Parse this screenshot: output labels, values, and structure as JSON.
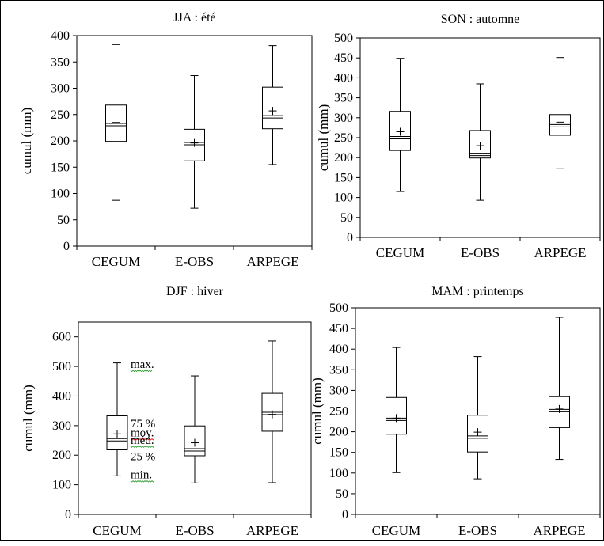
{
  "chart_data": [
    {
      "type": "box",
      "title": "JJA : été",
      "ylabel": "cumul (mm)",
      "ylim": [
        0,
        400
      ],
      "yticks": [
        0,
        50,
        100,
        150,
        200,
        250,
        300,
        350,
        400
      ],
      "categories": [
        "CEGUM",
        "E-OBS",
        "ARPEGE"
      ],
      "boxes": [
        {
          "min": 87,
          "q1": 199,
          "median": 233,
          "mean": 235,
          "q3": 268,
          "max": 383
        },
        {
          "min": 72,
          "q1": 162,
          "median": 197,
          "mean": 196,
          "q3": 222,
          "max": 324
        },
        {
          "min": 155,
          "q1": 223,
          "median": 248,
          "mean": 257,
          "q3": 302,
          "max": 381
        }
      ]
    },
    {
      "type": "box",
      "title": "SON : automne",
      "ylabel": "cumul (mm)",
      "ylim": [
        0,
        500
      ],
      "yticks": [
        0,
        50,
        100,
        150,
        200,
        250,
        300,
        350,
        400,
        450,
        500
      ],
      "categories": [
        "CEGUM",
        "E-OBS",
        "ARPEGE"
      ],
      "boxes": [
        {
          "min": 115,
          "q1": 218,
          "median": 253,
          "mean": 265,
          "q3": 316,
          "max": 449
        },
        {
          "min": 93,
          "q1": 199,
          "median": 211,
          "mean": 230,
          "q3": 268,
          "max": 385
        },
        {
          "min": 172,
          "q1": 256,
          "median": 283,
          "mean": 289,
          "q3": 308,
          "max": 451
        }
      ]
    },
    {
      "type": "box",
      "title": "DJF : hiver",
      "ylabel": "cumul (mm)",
      "ylim": [
        0,
        650
      ],
      "yticks": [
        0,
        100,
        200,
        300,
        400,
        500,
        600
      ],
      "categories": [
        "CEGUM",
        "E-OBS",
        "ARPEGE"
      ],
      "boxes": [
        {
          "min": 130,
          "q1": 218,
          "median": 256,
          "mean": 272,
          "q3": 333,
          "max": 512
        },
        {
          "min": 106,
          "q1": 198,
          "median": 222,
          "mean": 242,
          "q3": 299,
          "max": 468
        },
        {
          "min": 107,
          "q1": 281,
          "median": 345,
          "mean": 338,
          "q3": 409,
          "max": 586
        }
      ],
      "annotations": {
        "max": "max.",
        "q3": "75 %",
        "mean": "moy.",
        "median": "méd.",
        "q1": "25 %",
        "min": "min."
      }
    },
    {
      "type": "box",
      "title": "MAM : printemps",
      "ylabel": "cumul (mm)",
      "ylim": [
        0,
        500
      ],
      "yticks": [
        0,
        50,
        100,
        150,
        200,
        250,
        300,
        350,
        400,
        450,
        500
      ],
      "categories": [
        "CEGUM",
        "E-OBS",
        "ARPEGE"
      ],
      "boxes": [
        {
          "min": 101,
          "q1": 194,
          "median": 233,
          "mean": 233,
          "q3": 283,
          "max": 404
        },
        {
          "min": 86,
          "q1": 151,
          "median": 190,
          "mean": 199,
          "q3": 240,
          "max": 382
        },
        {
          "min": 133,
          "q1": 210,
          "median": 254,
          "mean": 255,
          "q3": 285,
          "max": 477
        }
      ]
    }
  ]
}
